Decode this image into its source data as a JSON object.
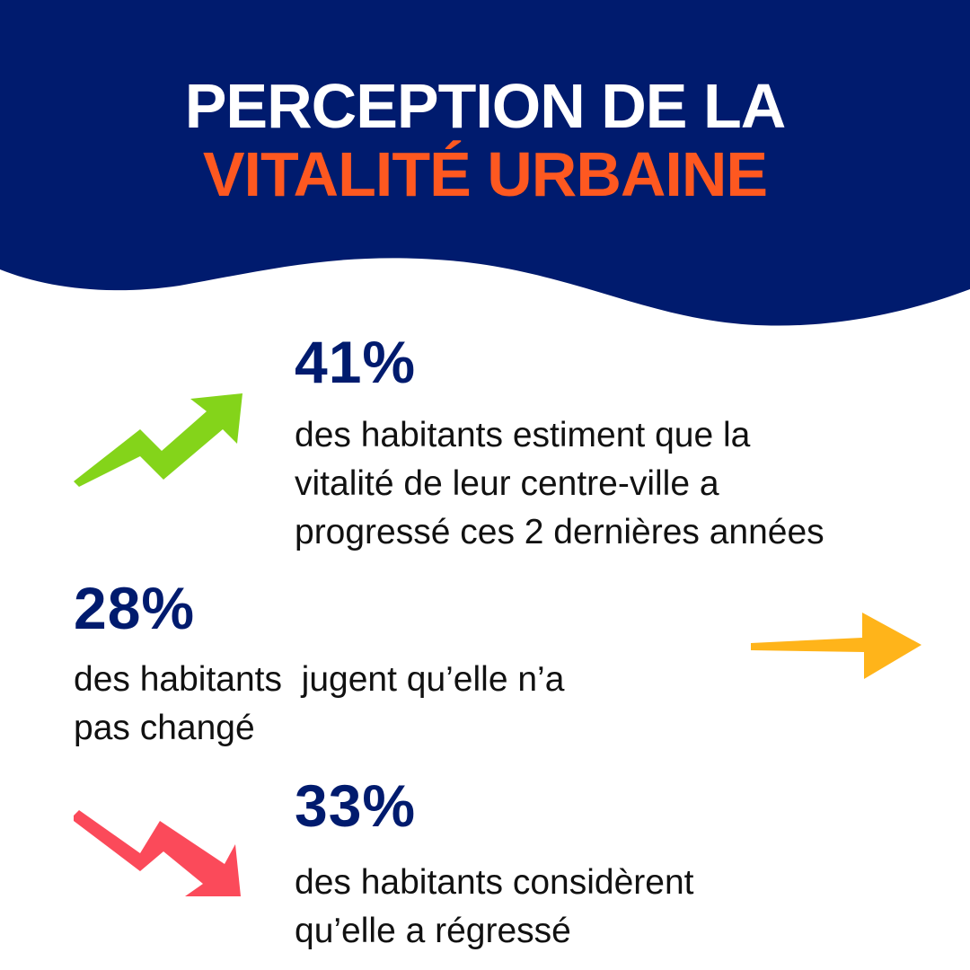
{
  "colors": {
    "navy": "#001b6e",
    "orange": "#fe5820",
    "white": "#ffffff",
    "green": "#84d41a",
    "yellow": "#ffb41a",
    "red": "#fb4a5a",
    "text": "#111111"
  },
  "header": {
    "title_line1": "PERCEPTION DE LA",
    "title_line2": "VITALITÉ URBAINE"
  },
  "stats": [
    {
      "value": "41%",
      "text": "des habitants estiment que la\nvitalité de leur centre-ville a\nprogressé ces 2 dernières années",
      "icon": "trend-up-arrow-icon",
      "proportion_percent": 41
    },
    {
      "value": "28%",
      "text": "des habitants  jugent qu’elle n’a\npas changé",
      "icon": "flat-arrow-icon",
      "proportion_percent": 28
    },
    {
      "value": "33%",
      "text": "des habitants considèrent\nqu’elle a régressé",
      "icon": "trend-down-arrow-icon",
      "proportion_percent": 33
    }
  ]
}
